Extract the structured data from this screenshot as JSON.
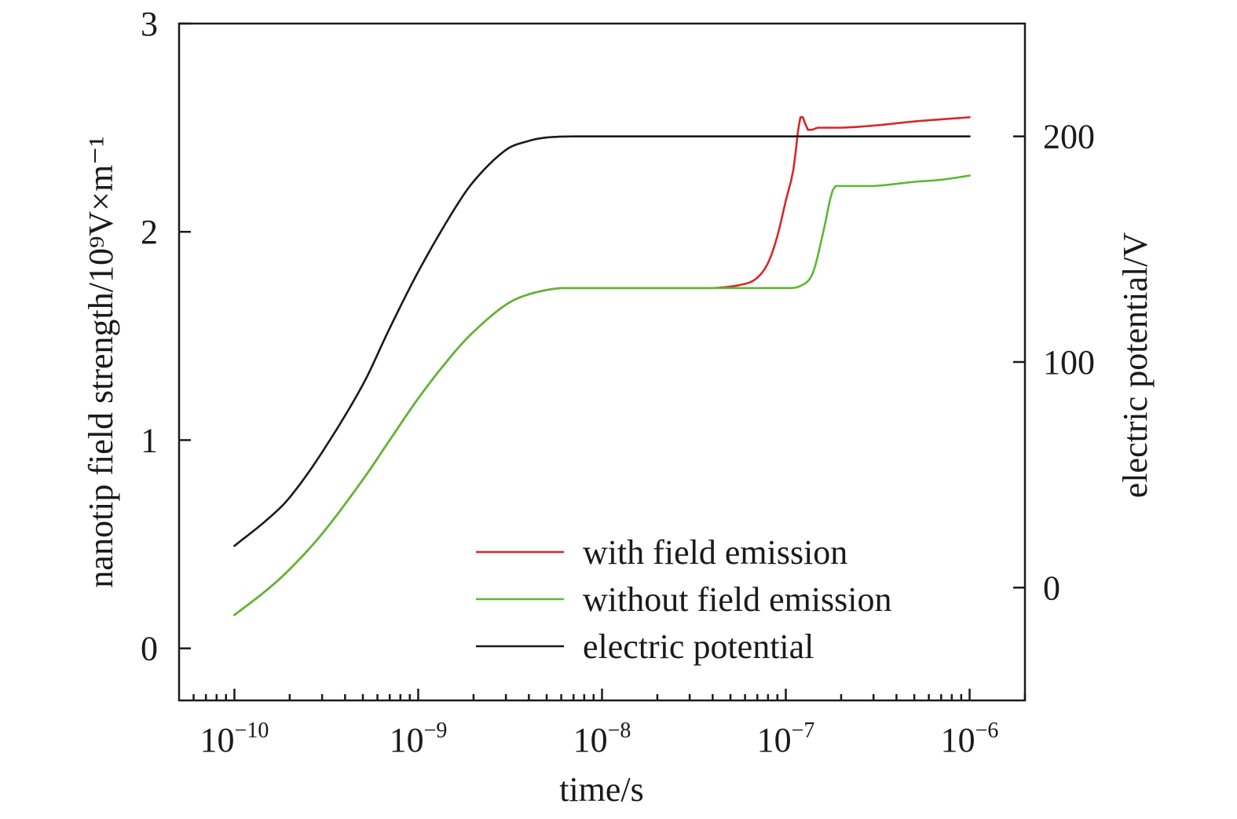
{
  "chart_data": {
    "type": "line",
    "xlabel": "time/s",
    "ylabel_left": "nanotip field strength/10⁹V×m⁻¹",
    "ylabel_right": "electric potential/V",
    "x_scale": "log",
    "xlim": [
      5e-11,
      2e-06
    ],
    "ylim_left": [
      -0.25,
      3
    ],
    "ylim_right": [
      -50,
      250
    ],
    "x_ticks": [
      {
        "value": 1e-10,
        "base": "10",
        "exp": "−10"
      },
      {
        "value": 1e-09,
        "base": "10",
        "exp": "−9"
      },
      {
        "value": 1e-08,
        "base": "10",
        "exp": "−8"
      },
      {
        "value": 1e-07,
        "base": "10",
        "exp": "−7"
      },
      {
        "value": 1e-06,
        "base": "10",
        "exp": "−6"
      }
    ],
    "y_ticks_left": [
      0,
      1,
      2,
      3
    ],
    "y_tick_labels_left": [
      "0",
      "1",
      "2",
      "3"
    ],
    "y_ticks_right": [
      0,
      100,
      200
    ],
    "y_tick_labels_right": [
      "0",
      "100",
      "200"
    ],
    "legend_position": "bottom-right",
    "grid": false,
    "series": [
      {
        "name": "with field emission",
        "color": "#d9262b",
        "axis": "left",
        "points": [
          [
            1e-10,
            0.16
          ],
          [
            1.5e-10,
            0.28
          ],
          [
            2e-10,
            0.38
          ],
          [
            3e-10,
            0.55
          ],
          [
            5e-10,
            0.81
          ],
          [
            7e-10,
            1.0
          ],
          [
            1e-09,
            1.2
          ],
          [
            1.5e-09,
            1.4
          ],
          [
            2e-09,
            1.52
          ],
          [
            3e-09,
            1.65
          ],
          [
            4e-09,
            1.7
          ],
          [
            6e-09,
            1.73
          ],
          [
            1e-08,
            1.73
          ],
          [
            2e-08,
            1.73
          ],
          [
            4e-08,
            1.73
          ],
          [
            6e-08,
            1.75
          ],
          [
            7e-08,
            1.78
          ],
          [
            8e-08,
            1.85
          ],
          [
            9e-08,
            1.98
          ],
          [
            1e-07,
            2.15
          ],
          [
            1.1e-07,
            2.3
          ],
          [
            1.2e-07,
            2.55
          ],
          [
            1.32e-07,
            2.49
          ],
          [
            1.5e-07,
            2.5
          ],
          [
            2e-07,
            2.5
          ],
          [
            3e-07,
            2.51
          ],
          [
            5e-07,
            2.53
          ],
          [
            7e-07,
            2.54
          ],
          [
            1e-06,
            2.55
          ]
        ]
      },
      {
        "name": "without field emission",
        "color": "#5cb832",
        "axis": "left",
        "points": [
          [
            1e-10,
            0.16
          ],
          [
            1.5e-10,
            0.28
          ],
          [
            2e-10,
            0.38
          ],
          [
            3e-10,
            0.55
          ],
          [
            5e-10,
            0.81
          ],
          [
            7e-10,
            1.0
          ],
          [
            1e-09,
            1.2
          ],
          [
            1.5e-09,
            1.4
          ],
          [
            2e-09,
            1.52
          ],
          [
            3e-09,
            1.65
          ],
          [
            4e-09,
            1.7
          ],
          [
            6e-09,
            1.73
          ],
          [
            1e-08,
            1.73
          ],
          [
            3e-08,
            1.73
          ],
          [
            6e-08,
            1.73
          ],
          [
            1e-07,
            1.73
          ],
          [
            1.2e-07,
            1.74
          ],
          [
            1.4e-07,
            1.8
          ],
          [
            1.6e-07,
            2.0
          ],
          [
            1.8e-07,
            2.2
          ],
          [
            2e-07,
            2.22
          ],
          [
            3e-07,
            2.22
          ],
          [
            5e-07,
            2.24
          ],
          [
            7e-07,
            2.25
          ],
          [
            1e-06,
            2.27
          ]
        ]
      },
      {
        "name": "electric potential",
        "color": "#1a1a1a",
        "axis": "right",
        "points": [
          [
            1e-10,
            18.5
          ],
          [
            1.5e-10,
            30
          ],
          [
            2e-10,
            40
          ],
          [
            3e-10,
            60
          ],
          [
            5e-10,
            90
          ],
          [
            7e-10,
            115
          ],
          [
            1e-09,
            140
          ],
          [
            1.5e-09,
            165
          ],
          [
            2e-09,
            180
          ],
          [
            3e-09,
            194
          ],
          [
            4e-09,
            198
          ],
          [
            5e-09,
            199.5
          ],
          [
            7e-09,
            200
          ],
          [
            1e-08,
            200
          ],
          [
            1e-07,
            200
          ],
          [
            1e-06,
            200
          ]
        ]
      }
    ]
  }
}
